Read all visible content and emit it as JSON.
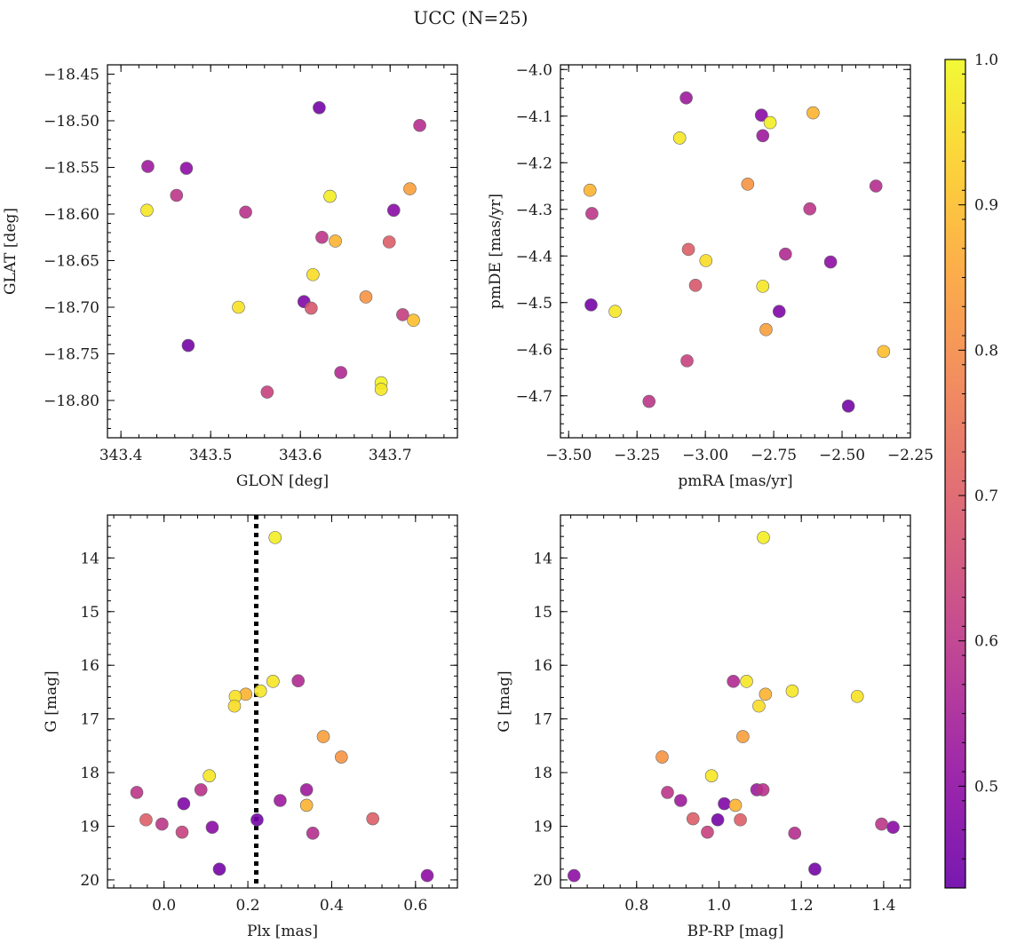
{
  "figure": {
    "title": "UCC (N=25)"
  },
  "colors": {
    "colormap": "plasma",
    "point_edge": "#666666",
    "reference_line": "#000000"
  },
  "chart_data": [
    {
      "id": "glon-glat",
      "type": "scatter",
      "xlabel": "GLON [deg]",
      "ylabel": "GLAT [deg]",
      "xlim": [
        343.385,
        343.775
      ],
      "ylim": [
        -18.84,
        -18.44
      ],
      "inverted_y": false,
      "grid": false,
      "xticks": [
        343.4,
        343.5,
        343.6,
        343.7
      ],
      "xtick_labels": [
        "343.4",
        "343.5",
        "343.6",
        "343.7"
      ],
      "yticks": [
        -18.45,
        -18.5,
        -18.55,
        -18.6,
        -18.65,
        -18.7,
        -18.75,
        -18.8
      ],
      "ytick_labels": [
        "−18.45",
        "−18.50",
        "−18.55",
        "−18.60",
        "−18.65",
        "−18.70",
        "−18.75",
        "−18.80"
      ],
      "points": [
        {
          "x": 343.621,
          "y": -18.486,
          "c": 0.45
        },
        {
          "x": 343.733,
          "y": -18.505,
          "c": 0.58
        },
        {
          "x": 343.43,
          "y": -18.549,
          "c": 0.53
        },
        {
          "x": 343.473,
          "y": -18.551,
          "c": 0.5
        },
        {
          "x": 343.462,
          "y": -18.58,
          "c": 0.6
        },
        {
          "x": 343.633,
          "y": -18.581,
          "c": 0.98
        },
        {
          "x": 343.722,
          "y": -18.573,
          "c": 0.84
        },
        {
          "x": 343.429,
          "y": -18.596,
          "c": 0.97
        },
        {
          "x": 343.539,
          "y": -18.598,
          "c": 0.59
        },
        {
          "x": 343.704,
          "y": -18.596,
          "c": 0.49
        },
        {
          "x": 343.624,
          "y": -18.625,
          "c": 0.6
        },
        {
          "x": 343.639,
          "y": -18.629,
          "c": 0.88
        },
        {
          "x": 343.699,
          "y": -18.63,
          "c": 0.7
        },
        {
          "x": 343.614,
          "y": -18.665,
          "c": 0.95
        },
        {
          "x": 343.531,
          "y": -18.7,
          "c": 0.96
        },
        {
          "x": 343.604,
          "y": -18.694,
          "c": 0.47
        },
        {
          "x": 343.612,
          "y": -18.701,
          "c": 0.68
        },
        {
          "x": 343.673,
          "y": -18.689,
          "c": 0.82
        },
        {
          "x": 343.714,
          "y": -18.708,
          "c": 0.62
        },
        {
          "x": 343.726,
          "y": -18.714,
          "c": 0.9
        },
        {
          "x": 343.475,
          "y": -18.741,
          "c": 0.45
        },
        {
          "x": 343.645,
          "y": -18.77,
          "c": 0.57
        },
        {
          "x": 343.563,
          "y": -18.791,
          "c": 0.63
        },
        {
          "x": 343.69,
          "y": -18.781,
          "c": 0.99
        },
        {
          "x": 343.69,
          "y": -18.788,
          "c": 0.97
        }
      ]
    },
    {
      "id": "pmra-pmde",
      "type": "scatter",
      "xlabel": "pmRA [mas/yr]",
      "ylabel": "pmDE [mas/yr]",
      "xlim": [
        -3.53,
        -2.25
      ],
      "ylim": [
        -4.79,
        -3.99
      ],
      "inverted_y": false,
      "grid": false,
      "xticks": [
        -3.5,
        -3.25,
        -3.0,
        -2.75,
        -2.5,
        -2.25
      ],
      "xtick_labels": [
        "−3.50",
        "−3.25",
        "−3.00",
        "−2.75",
        "−2.50",
        "−2.25"
      ],
      "yticks": [
        -4.0,
        -4.1,
        -4.2,
        -4.3,
        -4.4,
        -4.5,
        -4.6,
        -4.7
      ],
      "ytick_labels": [
        "−4.0",
        "−4.1",
        "−4.2",
        "−4.3",
        "−4.4",
        "−4.5",
        "−4.6",
        "−4.7"
      ],
      "points": [
        {
          "x": -3.07,
          "y": -4.061,
          "c": 0.53
        },
        {
          "x": -2.795,
          "y": -4.098,
          "c": 0.49
        },
        {
          "x": -2.763,
          "y": -4.114,
          "c": 0.98
        },
        {
          "x": -2.606,
          "y": -4.093,
          "c": 0.88
        },
        {
          "x": -3.094,
          "y": -4.147,
          "c": 0.97
        },
        {
          "x": -2.79,
          "y": -4.142,
          "c": 0.53
        },
        {
          "x": -3.422,
          "y": -4.259,
          "c": 0.88
        },
        {
          "x": -2.845,
          "y": -4.246,
          "c": 0.82
        },
        {
          "x": -2.376,
          "y": -4.25,
          "c": 0.58
        },
        {
          "x": -3.415,
          "y": -4.309,
          "c": 0.6
        },
        {
          "x": -2.618,
          "y": -4.299,
          "c": 0.6
        },
        {
          "x": -3.062,
          "y": -4.386,
          "c": 0.7
        },
        {
          "x": -2.998,
          "y": -4.41,
          "c": 0.95
        },
        {
          "x": -2.707,
          "y": -4.396,
          "c": 0.57
        },
        {
          "x": -2.542,
          "y": -4.413,
          "c": 0.5
        },
        {
          "x": -3.036,
          "y": -4.463,
          "c": 0.68
        },
        {
          "x": -2.79,
          "y": -4.465,
          "c": 0.97
        },
        {
          "x": -3.418,
          "y": -4.505,
          "c": 0.45
        },
        {
          "x": -3.33,
          "y": -4.519,
          "c": 0.97
        },
        {
          "x": -2.73,
          "y": -4.519,
          "c": 0.47
        },
        {
          "x": -2.778,
          "y": -4.558,
          "c": 0.84
        },
        {
          "x": -2.348,
          "y": -4.605,
          "c": 0.9
        },
        {
          "x": -3.067,
          "y": -4.625,
          "c": 0.63
        },
        {
          "x": -3.206,
          "y": -4.712,
          "c": 0.6
        },
        {
          "x": -2.477,
          "y": -4.722,
          "c": 0.45
        }
      ]
    },
    {
      "id": "plx-g",
      "type": "scatter",
      "xlabel": "Plx [mas]",
      "ylabel": "G [mag]",
      "xlim": [
        -0.135,
        0.7
      ],
      "ylim": [
        13.2,
        20.15
      ],
      "inverted_y": true,
      "grid": false,
      "vline": 0.22,
      "xticks": [
        0.0,
        0.2,
        0.4,
        0.6
      ],
      "xtick_labels": [
        "0.0",
        "0.2",
        "0.4",
        "0.6"
      ],
      "yticks": [
        14,
        15,
        16,
        17,
        18,
        19,
        20
      ],
      "ytick_labels": [
        "14",
        "15",
        "16",
        "17",
        "18",
        "19",
        "20"
      ],
      "points": [
        {
          "x": 0.265,
          "y": 13.62,
          "c": 0.98
        },
        {
          "x": 0.26,
          "y": 16.3,
          "c": 0.97
        },
        {
          "x": 0.32,
          "y": 16.29,
          "c": 0.57
        },
        {
          "x": 0.195,
          "y": 16.54,
          "c": 0.88
        },
        {
          "x": 0.17,
          "y": 16.58,
          "c": 0.96
        },
        {
          "x": 0.23,
          "y": 16.48,
          "c": 0.97
        },
        {
          "x": 0.168,
          "y": 16.76,
          "c": 0.95
        },
        {
          "x": 0.38,
          "y": 17.33,
          "c": 0.84
        },
        {
          "x": 0.423,
          "y": 17.71,
          "c": 0.82
        },
        {
          "x": 0.108,
          "y": 18.06,
          "c": 0.97
        },
        {
          "x": -0.065,
          "y": 18.37,
          "c": 0.6
        },
        {
          "x": 0.088,
          "y": 18.32,
          "c": 0.59
        },
        {
          "x": 0.34,
          "y": 18.32,
          "c": 0.53
        },
        {
          "x": 0.047,
          "y": 18.58,
          "c": 0.47
        },
        {
          "x": 0.277,
          "y": 18.52,
          "c": 0.53
        },
        {
          "x": 0.34,
          "y": 18.61,
          "c": 0.88
        },
        {
          "x": -0.043,
          "y": 18.88,
          "c": 0.7
        },
        {
          "x": -0.005,
          "y": 18.96,
          "c": 0.6
        },
        {
          "x": 0.222,
          "y": 18.88,
          "c": 0.45
        },
        {
          "x": 0.498,
          "y": 18.86,
          "c": 0.7
        },
        {
          "x": 0.115,
          "y": 19.02,
          "c": 0.49
        },
        {
          "x": 0.043,
          "y": 19.11,
          "c": 0.63
        },
        {
          "x": 0.355,
          "y": 19.13,
          "c": 0.58
        },
        {
          "x": 0.132,
          "y": 19.8,
          "c": 0.45
        },
        {
          "x": 0.628,
          "y": 19.92,
          "c": 0.5
        }
      ]
    },
    {
      "id": "bprp-g",
      "type": "scatter",
      "xlabel": "BP-RP [mag]",
      "ylabel": "G [mag]",
      "xlim": [
        0.615,
        1.465
      ],
      "ylim": [
        13.2,
        20.15
      ],
      "inverted_y": true,
      "grid": false,
      "xticks": [
        0.8,
        1.0,
        1.2,
        1.4
      ],
      "xtick_labels": [
        "0.8",
        "1.0",
        "1.2",
        "1.4"
      ],
      "yticks": [
        14,
        15,
        16,
        17,
        18,
        19,
        20
      ],
      "ytick_labels": [
        "14",
        "15",
        "16",
        "17",
        "18",
        "19",
        "20"
      ],
      "points": [
        {
          "x": 1.108,
          "y": 13.62,
          "c": 0.98
        },
        {
          "x": 1.035,
          "y": 16.3,
          "c": 0.57
        },
        {
          "x": 1.067,
          "y": 16.3,
          "c": 0.97
        },
        {
          "x": 1.178,
          "y": 16.48,
          "c": 0.97
        },
        {
          "x": 1.113,
          "y": 16.54,
          "c": 0.88
        },
        {
          "x": 1.336,
          "y": 16.58,
          "c": 0.96
        },
        {
          "x": 1.097,
          "y": 16.76,
          "c": 0.95
        },
        {
          "x": 1.058,
          "y": 17.33,
          "c": 0.84
        },
        {
          "x": 0.862,
          "y": 17.71,
          "c": 0.82
        },
        {
          "x": 0.982,
          "y": 18.06,
          "c": 0.97
        },
        {
          "x": 0.875,
          "y": 18.37,
          "c": 0.6
        },
        {
          "x": 1.092,
          "y": 18.32,
          "c": 0.53
        },
        {
          "x": 1.107,
          "y": 18.32,
          "c": 0.59
        },
        {
          "x": 0.907,
          "y": 18.52,
          "c": 0.53
        },
        {
          "x": 1.013,
          "y": 18.58,
          "c": 0.47
        },
        {
          "x": 1.04,
          "y": 18.61,
          "c": 0.88
        },
        {
          "x": 0.937,
          "y": 18.86,
          "c": 0.7
        },
        {
          "x": 0.997,
          "y": 18.88,
          "c": 0.45
        },
        {
          "x": 1.052,
          "y": 18.88,
          "c": 0.7
        },
        {
          "x": 1.395,
          "y": 18.96,
          "c": 0.6
        },
        {
          "x": 1.423,
          "y": 19.02,
          "c": 0.49
        },
        {
          "x": 0.972,
          "y": 19.11,
          "c": 0.63
        },
        {
          "x": 1.184,
          "y": 19.13,
          "c": 0.58
        },
        {
          "x": 1.233,
          "y": 19.8,
          "c": 0.45
        },
        {
          "x": 0.648,
          "y": 19.92,
          "c": 0.5
        }
      ]
    }
  ],
  "colorbar": {
    "vmin": 0.43,
    "vmax": 1.0,
    "ticks": [
      0.5,
      0.6,
      0.7,
      0.8,
      0.9,
      1.0
    ],
    "tick_labels": [
      "0.5",
      "0.6",
      "0.7",
      "0.8",
      "0.9",
      "1.0"
    ]
  }
}
